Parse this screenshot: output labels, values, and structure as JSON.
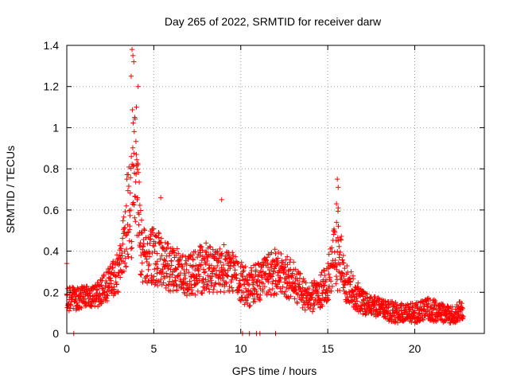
{
  "chart_data": {
    "type": "scatter",
    "title": "Day 265 of 2022, SRMTID for receiver darw",
    "xlabel": "GPS time / hours",
    "ylabel": "SRMTID / TECUs",
    "xlim": [
      0,
      24
    ],
    "ylim": [
      0,
      1.4
    ],
    "grid": true,
    "marker": "+",
    "marker_color": "#ff0000",
    "x_ticks": [
      0,
      5,
      10,
      15,
      20
    ],
    "x_tick_labels": [
      "0",
      "5",
      "10",
      "15",
      "20"
    ],
    "y_ticks": [
      0,
      0.2,
      0.4,
      0.6,
      0.8,
      1.0,
      1.2,
      1.4
    ],
    "y_tick_labels": [
      "0",
      "0.2",
      "0.4",
      "0.6",
      "0.8",
      "1",
      "1.2",
      "1.4"
    ],
    "profile_x": [
      0,
      0.5,
      1.0,
      1.5,
      2.0,
      2.5,
      3.0,
      3.3,
      3.6,
      3.8,
      4.0,
      4.3,
      4.6,
      5.0,
      5.5,
      6.0,
      6.5,
      7.0,
      7.5,
      8.0,
      8.5,
      9.0,
      9.5,
      10.0,
      10.5,
      11.0,
      11.5,
      12.0,
      12.5,
      13.0,
      13.5,
      14.0,
      14.5,
      15.0,
      15.3,
      15.6,
      16.0,
      16.5,
      17.0,
      17.5,
      18.0,
      18.5,
      19.0,
      19.5,
      20.0,
      20.5,
      21.0,
      21.5,
      22.0,
      22.5,
      22.8
    ],
    "profile_y": [
      0.17,
      0.17,
      0.18,
      0.18,
      0.2,
      0.25,
      0.3,
      0.45,
      0.65,
      0.8,
      0.7,
      0.4,
      0.35,
      0.38,
      0.35,
      0.32,
      0.3,
      0.28,
      0.3,
      0.32,
      0.3,
      0.32,
      0.3,
      0.25,
      0.22,
      0.25,
      0.28,
      0.3,
      0.28,
      0.26,
      0.2,
      0.17,
      0.2,
      0.25,
      0.35,
      0.4,
      0.25,
      0.2,
      0.15,
      0.14,
      0.12,
      0.11,
      0.1,
      0.1,
      0.1,
      0.11,
      0.12,
      0.1,
      0.09,
      0.1,
      0.12
    ],
    "spread_y": [
      0.06,
      0.06,
      0.05,
      0.05,
      0.07,
      0.08,
      0.1,
      0.15,
      0.3,
      0.45,
      0.3,
      0.15,
      0.12,
      0.15,
      0.12,
      0.12,
      0.1,
      0.1,
      0.12,
      0.12,
      0.1,
      0.12,
      0.1,
      0.1,
      0.1,
      0.1,
      0.1,
      0.12,
      0.1,
      0.1,
      0.08,
      0.07,
      0.08,
      0.1,
      0.15,
      0.2,
      0.1,
      0.08,
      0.06,
      0.05,
      0.05,
      0.05,
      0.05,
      0.04,
      0.05,
      0.05,
      0.06,
      0.05,
      0.04,
      0.05,
      0.05
    ],
    "notable_points": [
      {
        "x": 3.75,
        "y": 1.38
      },
      {
        "x": 3.8,
        "y": 1.35
      },
      {
        "x": 3.85,
        "y": 1.32
      },
      {
        "x": 3.7,
        "y": 1.25
      },
      {
        "x": 4.1,
        "y": 1.2
      },
      {
        "x": 4.0,
        "y": 1.1
      },
      {
        "x": 3.9,
        "y": 1.05
      },
      {
        "x": 15.55,
        "y": 0.75
      },
      {
        "x": 15.6,
        "y": 0.71
      },
      {
        "x": 15.5,
        "y": 0.63
      },
      {
        "x": 15.6,
        "y": 0.61
      },
      {
        "x": 8.9,
        "y": 0.65
      },
      {
        "x": 5.4,
        "y": 0.66
      },
      {
        "x": 0.0,
        "y": 0.34
      },
      {
        "x": 0.4,
        "y": 0.0
      },
      {
        "x": 10.1,
        "y": 0.0
      },
      {
        "x": 10.5,
        "y": 0.0
      },
      {
        "x": 10.9,
        "y": 0.0
      },
      {
        "x": 11.1,
        "y": 0.0
      },
      {
        "x": 12.0,
        "y": 0.0
      }
    ]
  }
}
